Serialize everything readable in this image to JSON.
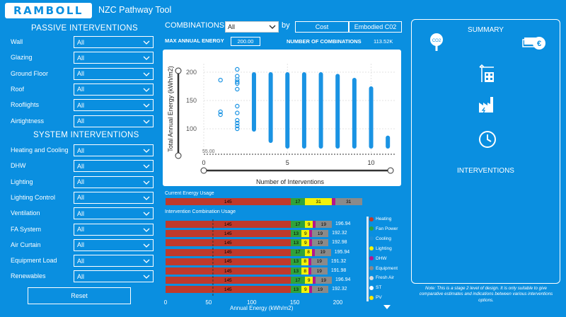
{
  "header": {
    "logo": "RAMBOLL",
    "title": "NZC Pathway Tool"
  },
  "passive": {
    "title": "PASSIVE INTERVENTIONS",
    "rows": [
      {
        "label": "Wall",
        "value": "All"
      },
      {
        "label": "Glazing",
        "value": "All"
      },
      {
        "label": "Ground Floor",
        "value": "All"
      },
      {
        "label": "Roof",
        "value": "All"
      },
      {
        "label": "Rooflights",
        "value": "All"
      },
      {
        "label": "Airtightness",
        "value": "All"
      }
    ]
  },
  "system": {
    "title": "SYSTEM INTERVENTIONS",
    "rows": [
      {
        "label": "Heating and Cooling",
        "value": "All"
      },
      {
        "label": "DHW",
        "value": "All"
      },
      {
        "label": "Lighting",
        "value": "All"
      },
      {
        "label": "Lighting Control",
        "value": "All"
      },
      {
        "label": "Ventilation",
        "value": "All"
      },
      {
        "label": "FA System",
        "value": "All"
      },
      {
        "label": "Air Curtain",
        "value": "All"
      },
      {
        "label": "Equipment Load",
        "value": "All"
      },
      {
        "label": "Renewables",
        "value": "All"
      }
    ]
  },
  "reset_label": "Reset",
  "controls": {
    "combinations_label": "COMBINATIONS",
    "combinations_value": "All",
    "by_label": "by",
    "cost_label": "Cost",
    "embodied_label": "Embodied C02",
    "max_energy_label": "MAX ANNUAL ENERGY",
    "max_energy_value": "200.00",
    "num_combos_label": "NUMBER OF COMBINATIONS",
    "num_combos_value": "113.52K"
  },
  "chart_data": {
    "type": "scatter",
    "xlabel": "Number of Interventions",
    "ylabel": "Total Annual Energy (kWh/m2)",
    "x_ticks": [
      "0",
      "5",
      "10"
    ],
    "y_ticks": [
      "100",
      "150",
      "200"
    ],
    "xlim": [
      0,
      11.5
    ],
    "ylim": [
      55,
      215
    ],
    "reference_line_label": "55.00",
    "reference_line_value": 55,
    "columns": [
      {
        "x": 1,
        "y_points": [
          186,
          130,
          125
        ]
      },
      {
        "x": 2,
        "y_points": [
          205,
          193,
          187,
          183,
          180,
          170,
          140,
          128,
          115,
          110,
          105,
          100
        ]
      },
      {
        "x": 3,
        "y_min": 95,
        "y_max": 200
      },
      {
        "x": 4,
        "y_min": 75,
        "y_max": 200
      },
      {
        "x": 5,
        "y_min": 65,
        "y_max": 200
      },
      {
        "x": 6,
        "y_min": 65,
        "y_max": 200
      },
      {
        "x": 7,
        "y_min": 65,
        "y_max": 200
      },
      {
        "x": 8,
        "y_min": 65,
        "y_max": 197
      },
      {
        "x": 9,
        "y_min": 65,
        "y_max": 190
      },
      {
        "x": 10,
        "y_min": 65,
        "y_max": 175
      },
      {
        "x": 11,
        "y_min": 65,
        "y_max": 88
      }
    ]
  },
  "current_usage": {
    "title": "Current Energy Usage",
    "segments": [
      {
        "label": "145",
        "value": 145,
        "color": "#c0392b"
      },
      {
        "label": "17",
        "value": 17,
        "color": "#2fa33c"
      },
      {
        "label": "31",
        "value": 31,
        "color": "#f2f20a"
      },
      {
        "label": "",
        "value": 4,
        "color": "#b5178c"
      },
      {
        "label": "31",
        "value": 31,
        "color": "#8a8a8a"
      }
    ]
  },
  "combo_usage": {
    "title": "Intervention Combination Usage",
    "xlabel": "Annual Energy (kWh/m2)",
    "x_ticks": [
      "0",
      "50",
      "100",
      "150",
      "200"
    ],
    "rows": [
      {
        "total": "196.94",
        "segments": [
          {
            "label": "145",
            "value": 145,
            "color": "#c0392b"
          },
          {
            "label": "17",
            "value": 17,
            "color": "#2fa33c"
          },
          {
            "label": "9",
            "value": 9,
            "color": "#f2f20a"
          },
          {
            "label": "",
            "value": 3,
            "color": "#b5178c"
          },
          {
            "label": "19",
            "value": 19,
            "color": "#8a8a8a"
          }
        ]
      },
      {
        "total": "192.32",
        "segments": [
          {
            "label": "145",
            "value": 145,
            "color": "#c0392b"
          },
          {
            "label": "13",
            "value": 13,
            "color": "#2fa33c"
          },
          {
            "label": "9",
            "value": 9,
            "color": "#f2f20a"
          },
          {
            "label": "",
            "value": 3,
            "color": "#b5178c"
          },
          {
            "label": "19",
            "value": 19,
            "color": "#8a8a8a"
          }
        ]
      },
      {
        "total": "192.98",
        "segments": [
          {
            "label": "145",
            "value": 145,
            "color": "#c0392b"
          },
          {
            "label": "13",
            "value": 13,
            "color": "#2fa33c"
          },
          {
            "label": "9",
            "value": 9,
            "color": "#f2f20a"
          },
          {
            "label": "",
            "value": 3,
            "color": "#b5178c"
          },
          {
            "label": "19",
            "value": 19,
            "color": "#8a8a8a"
          }
        ]
      },
      {
        "total": "195.94",
        "segments": [
          {
            "label": "145",
            "value": 145,
            "color": "#c0392b"
          },
          {
            "label": "17",
            "value": 17,
            "color": "#2fa33c"
          },
          {
            "label": "8",
            "value": 8,
            "color": "#f2f20a"
          },
          {
            "label": "",
            "value": 3,
            "color": "#b5178c"
          },
          {
            "label": "19",
            "value": 19,
            "color": "#8a8a8a"
          }
        ]
      },
      {
        "total": "191.32",
        "segments": [
          {
            "label": "145",
            "value": 145,
            "color": "#c0392b"
          },
          {
            "label": "13",
            "value": 13,
            "color": "#2fa33c"
          },
          {
            "label": "8",
            "value": 8,
            "color": "#f2f20a"
          },
          {
            "label": "",
            "value": 3,
            "color": "#b5178c"
          },
          {
            "label": "19",
            "value": 19,
            "color": "#8a8a8a"
          }
        ]
      },
      {
        "total": "191.98",
        "segments": [
          {
            "label": "145",
            "value": 145,
            "color": "#c0392b"
          },
          {
            "label": "13",
            "value": 13,
            "color": "#2fa33c"
          },
          {
            "label": "8",
            "value": 8,
            "color": "#f2f20a"
          },
          {
            "label": "",
            "value": 3,
            "color": "#b5178c"
          },
          {
            "label": "19",
            "value": 19,
            "color": "#8a8a8a"
          }
        ]
      },
      {
        "total": "196.94",
        "segments": [
          {
            "label": "145",
            "value": 145,
            "color": "#c0392b"
          },
          {
            "label": "17",
            "value": 17,
            "color": "#2fa33c"
          },
          {
            "label": "9",
            "value": 9,
            "color": "#f2f20a"
          },
          {
            "label": "",
            "value": 3,
            "color": "#b5178c"
          },
          {
            "label": "19",
            "value": 19,
            "color": "#8a8a8a"
          }
        ]
      },
      {
        "total": "192.32",
        "segments": [
          {
            "label": "145",
            "value": 145,
            "color": "#c0392b"
          },
          {
            "label": "13",
            "value": 13,
            "color": "#2fa33c"
          },
          {
            "label": "9",
            "value": 9,
            "color": "#f2f20a"
          },
          {
            "label": "",
            "value": 3,
            "color": "#b5178c"
          },
          {
            "label": "19",
            "value": 19,
            "color": "#8a8a8a"
          }
        ]
      }
    ]
  },
  "legend": [
    {
      "label": "Heating",
      "color": "#c0392b"
    },
    {
      "label": "Fan Power",
      "color": "#2fa33c"
    },
    {
      "label": "Cooling",
      "color": "#1f8fd8"
    },
    {
      "label": "Lighting",
      "color": "#f2f20a"
    },
    {
      "label": "DHW",
      "color": "#b5178c"
    },
    {
      "label": "Equipment",
      "color": "#8a8a8a"
    },
    {
      "label": "Fresh Air",
      "color": "#d9d9d9"
    },
    {
      "label": "ST",
      "color": "#ffffff"
    },
    {
      "label": "PV",
      "color": "#ffe600"
    }
  ],
  "summary": {
    "title": "SUMMARY",
    "co2_icon_text": "CO2",
    "interventions_title": "INTERVENTIONS",
    "note": "Note: This is a stage 2 level of design. It is only suitable to give comparative estimates and indications between various interventions options."
  },
  "colors": {
    "background": "#0a8fe0",
    "scatter": "#1a93e3",
    "heating": "#c0392b"
  }
}
